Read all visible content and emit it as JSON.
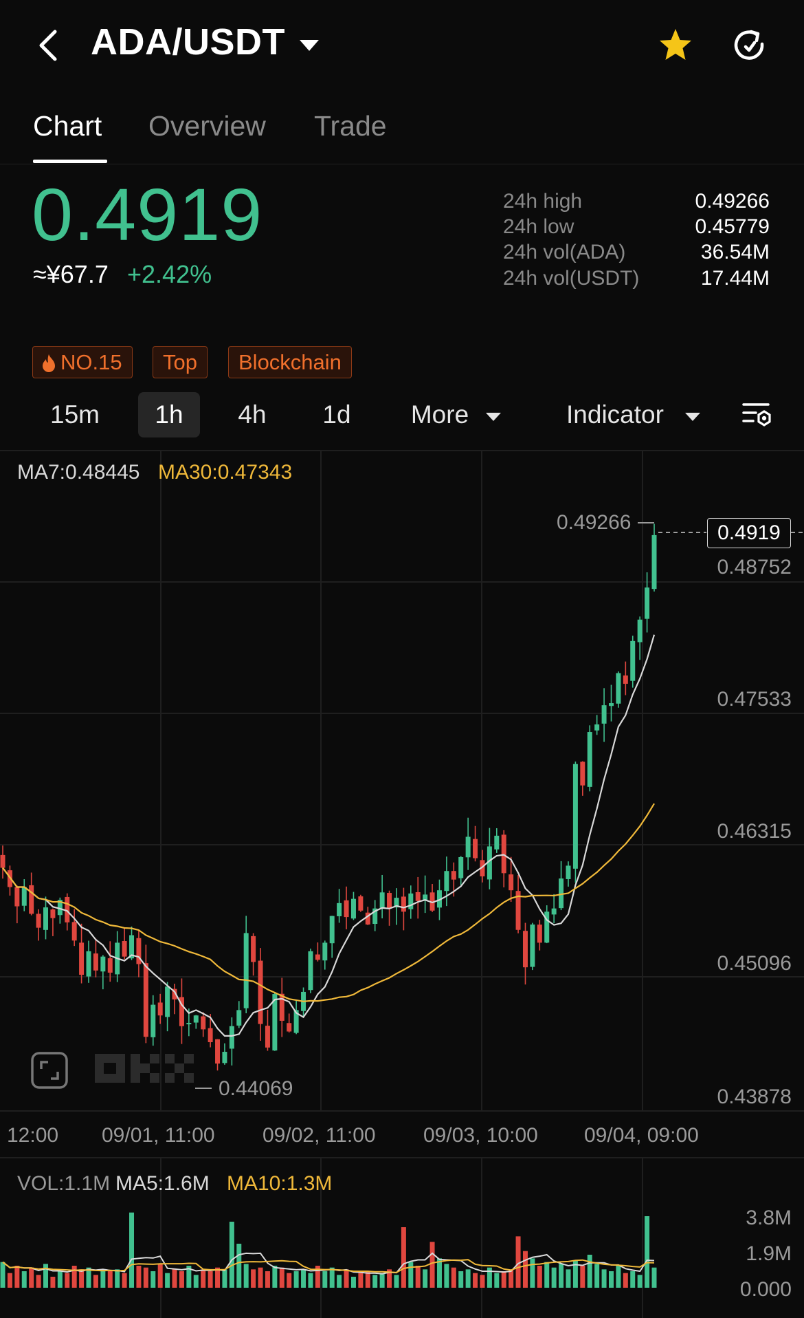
{
  "header": {
    "title": "ADA/USDT",
    "back_icon": "chevron-left-icon",
    "favorite_icon": "star-icon",
    "favorite_color": "#f5c518",
    "refresh_icon": "refresh-icon"
  },
  "tabs": [
    {
      "label": "Chart",
      "active": true
    },
    {
      "label": "Overview",
      "active": false
    },
    {
      "label": "Trade",
      "active": false
    }
  ],
  "price": {
    "last": "0.4919",
    "fiat": "≈¥67.7",
    "change": "+2.42%",
    "up_color": "#41c18f",
    "down_color": "#e0473f"
  },
  "stats": [
    {
      "label": "24h high",
      "value": "0.49266"
    },
    {
      "label": "24h low",
      "value": "0.45779"
    },
    {
      "label": "24h vol(ADA)",
      "value": "36.54M"
    },
    {
      "label": "24h vol(USDT)",
      "value": "17.44M"
    }
  ],
  "tags": [
    {
      "label": "NO.15",
      "icon": "flame-icon"
    },
    {
      "label": "Top"
    },
    {
      "label": "Blockchain"
    }
  ],
  "intervals": [
    {
      "label": "15m",
      "active": false
    },
    {
      "label": "1h",
      "active": true
    },
    {
      "label": "4h",
      "active": false
    },
    {
      "label": "1d",
      "active": false
    }
  ],
  "more_label": "More",
  "indicator_label": "Indicator",
  "settings_icon": "chart-settings-icon",
  "chart_legend": {
    "ma7": "MA7:0.48445",
    "ma30": "MA30:0.47343",
    "ma7_color": "#d9d9d9",
    "ma30_color": "#f0b93a"
  },
  "chart_marks": {
    "high_label": "0.49266",
    "low_label": "0.44069",
    "current_price_tag": "0.4919"
  },
  "volume_legend": {
    "vol": "VOL:1.1M",
    "ma5": "MA5:1.6M",
    "ma10": "MA10:1.3M"
  },
  "chart_data": {
    "type": "candlestick",
    "y_axis_labels": [
      "0.48752",
      "0.47533",
      "0.46315",
      "0.45096",
      "0.43878"
    ],
    "x_axis_labels": [
      "12:00",
      "09/01, 11:00",
      "09/02, 11:00",
      "09/03, 10:00",
      "09/04, 09:00"
    ],
    "volume_axis_labels": [
      "3.8M",
      "1.9M",
      "0.000"
    ],
    "ylim": [
      0.43878,
      0.4925
    ],
    "volume_max": 4.2,
    "candle_count": 92,
    "closes": [
      0.4608,
      0.459,
      0.4572,
      0.459,
      0.4565,
      0.4552,
      0.4571,
      0.4561,
      0.4578,
      0.4557,
      0.454,
      0.4508,
      0.453,
      0.4512,
      0.4525,
      0.451,
      0.4538,
      0.4525,
      0.4545,
      0.4518,
      0.445,
      0.448,
      0.447,
      0.4497,
      0.4485,
      0.446,
      0.4463,
      0.447,
      0.4457,
      0.4445,
      0.4425,
      0.4436,
      0.446,
      0.4475,
      0.4547,
      0.452,
      0.4462,
      0.444,
      0.449,
      0.4465,
      0.4455,
      0.4475,
      0.4492,
      0.453,
      0.4522,
      0.4538,
      0.4563,
      0.4575,
      0.4562,
      0.4579,
      0.4568,
      0.4555,
      0.457,
      0.4585,
      0.457,
      0.458,
      0.4567,
      0.4584,
      0.4577,
      0.4583,
      0.4568,
      0.4587,
      0.4605,
      0.4597,
      0.4618,
      0.4637,
      0.4617,
      0.46,
      0.4628,
      0.4638,
      0.4603,
      0.4587,
      0.455,
      0.4515,
      0.4555,
      0.4538,
      0.4567,
      0.457,
      0.4598,
      0.461,
      0.4705,
      0.4685,
      0.4735,
      0.4742,
      0.476,
      0.4762,
      0.479,
      0.478,
      0.482,
      0.484,
      0.487,
      0.4919
    ],
    "volumes": [
      1.4,
      0.8,
      1.2,
      0.9,
      1.1,
      0.7,
      1.3,
      0.6,
      0.9,
      0.8,
      1.2,
      1.0,
      1.1,
      0.7,
      1.0,
      0.9,
      1.0,
      0.8,
      4.1,
      1.2,
      1.1,
      0.9,
      1.3,
      0.8,
      1.0,
      0.9,
      1.2,
      0.7,
      1.0,
      0.9,
      1.1,
      1.0,
      3.6,
      2.4,
      1.3,
      1.0,
      1.1,
      0.9,
      1.2,
      1.1,
      0.8,
      0.9,
      1.0,
      0.8,
      1.2,
      0.9,
      1.1,
      0.7,
      1.0,
      0.6,
      0.8,
      0.9,
      0.7,
      0.8,
      1.0,
      0.7,
      3.3,
      1.4,
      1.2,
      1.0,
      2.5,
      1.6,
      1.3,
      1.1,
      0.9,
      1.0,
      0.8,
      0.7,
      1.1,
      0.8,
      0.9,
      1.0,
      2.8,
      2.0,
      1.6,
      1.2,
      1.4,
      1.1,
      1.3,
      1.0,
      1.5,
      1.2,
      1.8,
      1.3,
      1.0,
      0.9,
      1.2,
      0.8,
      0.9,
      0.7,
      3.9,
      1.1
    ]
  }
}
